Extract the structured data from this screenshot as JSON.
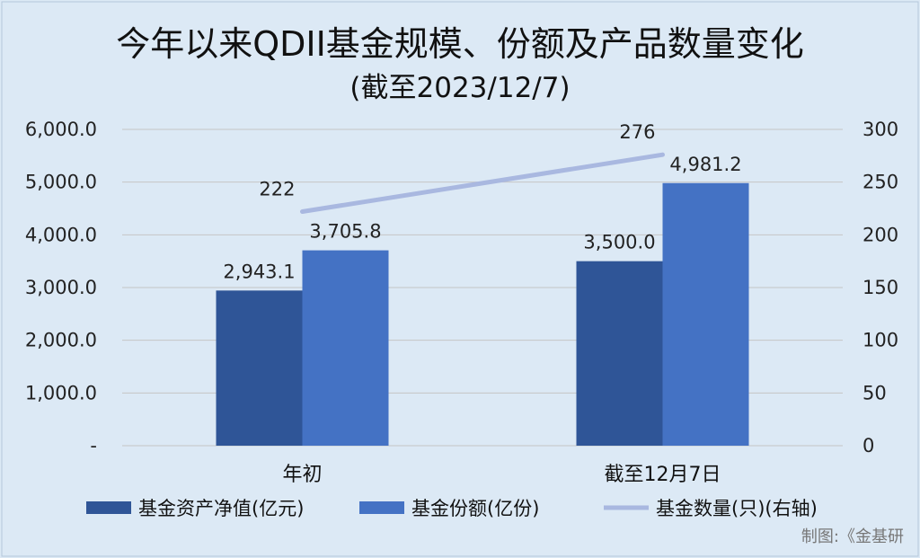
{
  "chart_data": {
    "type": "bar",
    "title": "今年以来QDII基金规模、份额及产品数量变化",
    "subtitle": "(截至2023/12/7)",
    "categories": [
      "年初",
      "截至12月7日"
    ],
    "series": [
      {
        "name": "基金资产净值(亿元)",
        "type": "bar",
        "axis": "left",
        "values": [
          2943.1,
          3500.0
        ],
        "labels": [
          "2,943.1",
          "3,500.0"
        ],
        "color": "#2f5597"
      },
      {
        "name": "基金份额(亿份)",
        "type": "bar",
        "axis": "left",
        "values": [
          3705.8,
          4981.2
        ],
        "labels": [
          "3,705.8",
          "4,981.2"
        ],
        "color": "#4472c4"
      },
      {
        "name": "基金数量(只)(右轴)",
        "type": "line",
        "axis": "right",
        "values": [
          222,
          276
        ],
        "labels": [
          "222",
          "276"
        ],
        "color": "#a9b8e0"
      }
    ],
    "y_left": {
      "ylim": [
        0,
        6000
      ],
      "ticks": [
        "-",
        "1,000.0",
        "2,000.0",
        "3,000.0",
        "4,000.0",
        "5,000.0",
        "6,000.0"
      ]
    },
    "y_right": {
      "ylim": [
        0,
        300
      ],
      "ticks": [
        "0",
        "50",
        "100",
        "150",
        "200",
        "250",
        "300"
      ]
    },
    "grid": true,
    "legend_position": "bottom",
    "credit": "制图:《金基研"
  }
}
